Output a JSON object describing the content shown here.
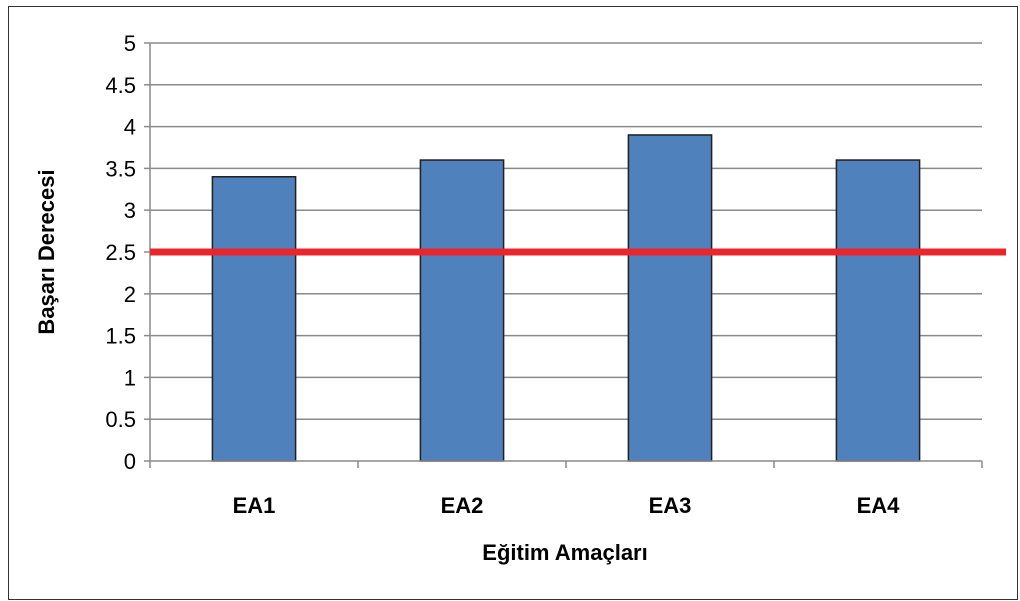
{
  "chart_data": {
    "type": "bar",
    "title": "",
    "xlabel": "Eğitim Amaçları",
    "ylabel": "Başarı Derecesi",
    "categories": [
      "EA1",
      "EA2",
      "EA3",
      "EA4"
    ],
    "values": [
      3.4,
      3.6,
      3.9,
      3.6
    ],
    "ylim": [
      0,
      5
    ],
    "yticks": [
      "0",
      "0.5",
      "1",
      "1.5",
      "2",
      "2.5",
      "3",
      "3.5",
      "4",
      "4.5",
      "5"
    ],
    "grid": true,
    "reference_line": {
      "value": 2.5,
      "color": "#e8262b"
    },
    "bar_color": "#4f81bd",
    "bar_edge_color": "#1f1f1f"
  }
}
